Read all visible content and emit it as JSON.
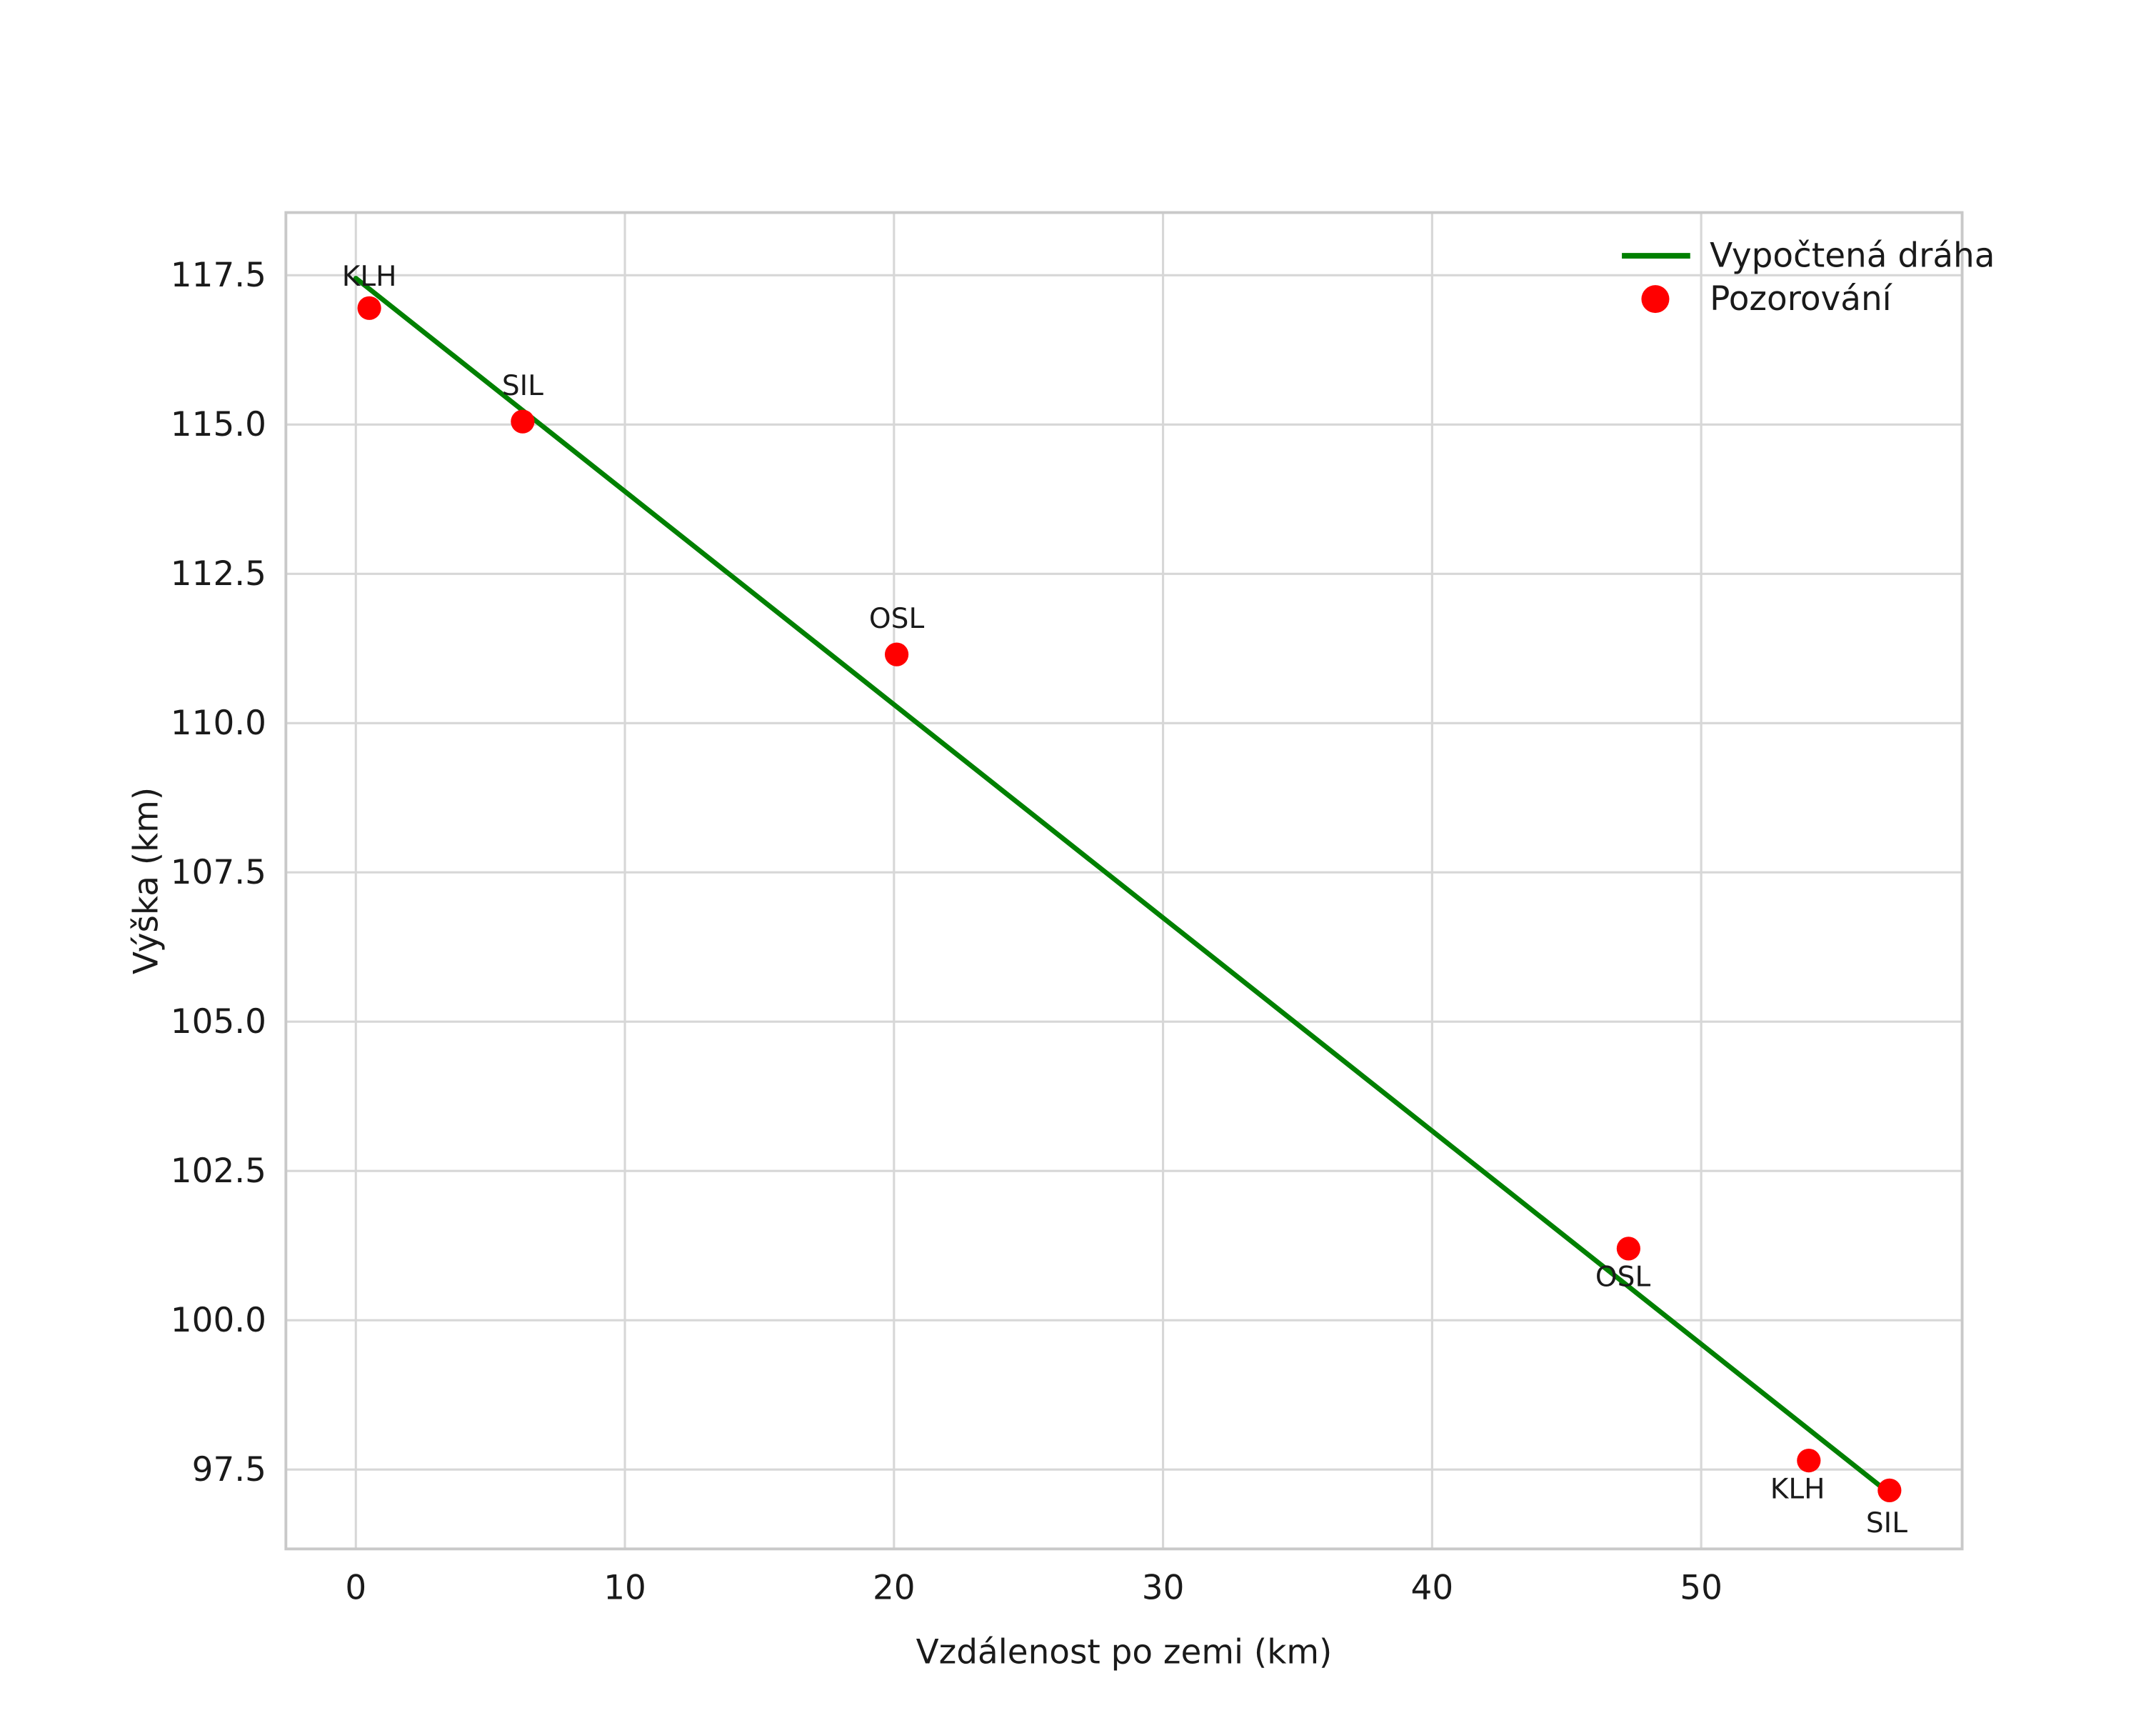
{
  "chart_data": {
    "type": "line+scatter",
    "xlabel": "Vzdálenost po zemi (km)",
    "ylabel": "Výška (km)",
    "xlim": [
      -2.6,
      59.7
    ],
    "ylim": [
      96.17,
      118.55
    ],
    "xticks": [
      0,
      10,
      20,
      30,
      40,
      50
    ],
    "xtick_labels": [
      "0",
      "10",
      "20",
      "30",
      "40",
      "50"
    ],
    "yticks": [
      97.5,
      100.0,
      102.5,
      105.0,
      107.5,
      110.0,
      112.5,
      115.0,
      117.5
    ],
    "ytick_labels": [
      "97.5",
      "100.0",
      "102.5",
      "105.0",
      "107.5",
      "110.0",
      "112.5",
      "115.0",
      "117.5"
    ],
    "grid": true,
    "legend_position": "upper right",
    "colors": {
      "line": "#008000",
      "points": "#ff0000",
      "grid": "#d7d7d7",
      "border": "#c9c9c9",
      "text": "#1a1a1a"
    },
    "legend": {
      "entries": [
        {
          "label": "Vypočtená dráha",
          "type": "line",
          "color": "#008000"
        },
        {
          "label": "Pozorování",
          "type": "point",
          "color": "#ff0000"
        }
      ]
    },
    "series": [
      {
        "name": "Vypočtená dráha",
        "type": "line",
        "color": "#008000",
        "x": [
          0,
          10,
          20,
          30,
          40,
          50,
          57
        ],
        "y": [
          117.45,
          113.88,
          110.31,
          106.74,
          103.17,
          99.6,
          97.1
        ]
      },
      {
        "name": "Pozorování",
        "type": "scatter",
        "color": "#ff0000",
        "marker_radius": 8.5,
        "points": [
          {
            "x": 0.5,
            "y": 116.95,
            "label": "KLH",
            "dx": 0,
            "dy": -16
          },
          {
            "x": 6.2,
            "y": 115.05,
            "label": "SIL",
            "dx": 0,
            "dy": -19
          },
          {
            "x": 20.1,
            "y": 111.15,
            "label": "OSL",
            "dx": 0,
            "dy": -19
          },
          {
            "x": 47.3,
            "y": 101.2,
            "label": "OSL",
            "dx": -4,
            "dy": 27
          },
          {
            "x": 54.0,
            "y": 97.65,
            "label": "KLH",
            "dx": -8,
            "dy": 27
          },
          {
            "x": 57.0,
            "y": 97.15,
            "label": "SIL",
            "dx": -2,
            "dy": 30
          }
        ]
      }
    ]
  }
}
